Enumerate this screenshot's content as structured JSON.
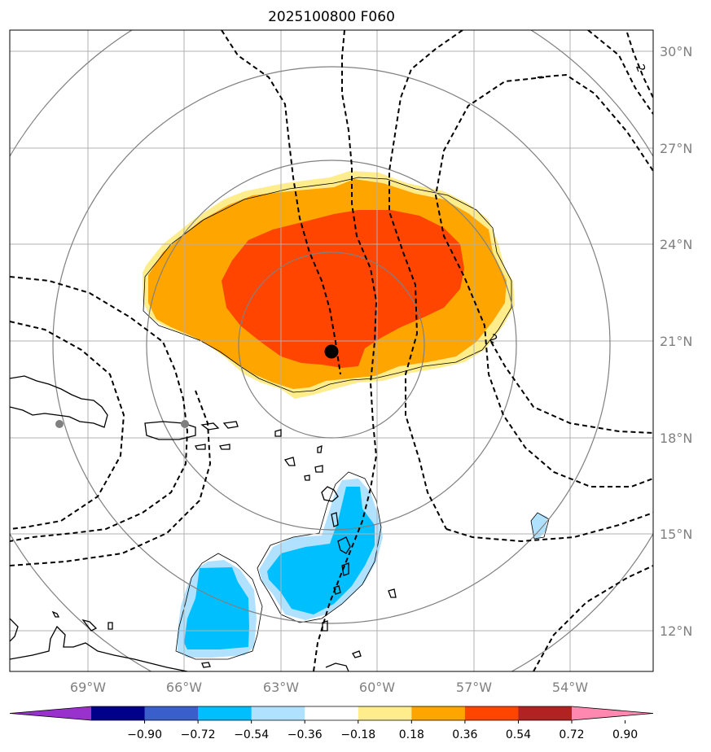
{
  "title": "2025100800 F060",
  "map": {
    "lat_labels": [
      "30°N",
      "27°N",
      "24°N",
      "21°N",
      "18°N",
      "15°N",
      "12°N"
    ],
    "lon_labels": [
      "69°W",
      "66°W",
      "63°W",
      "60°W",
      "57°W",
      "54°W"
    ],
    "contour_label": "2",
    "center_marker": "storm-center",
    "range_ring_count": 4
  },
  "colorbar": {
    "ticks": [
      "−0.90",
      "−0.72",
      "−0.54",
      "−0.36",
      "−0.18",
      "0.18",
      "0.36",
      "0.54",
      "0.72",
      "0.90"
    ],
    "colors": [
      "#9932cc",
      "#00008b",
      "#3a5fcd",
      "#00bfff",
      "#b0e2ff",
      "#ffffff",
      "#ffec8b",
      "#ffa500",
      "#ff4500",
      "#b22222",
      "#ff88b0"
    ]
  },
  "palette": {
    "pos_light": "#ffec8b",
    "pos_mid": "#ffa500",
    "pos_strong": "#ff4500",
    "neg_light": "#b0e2ff",
    "neg_mid": "#00bfff",
    "grid": "#b0b0b0",
    "ring": "#808080",
    "land": "#000000"
  }
}
